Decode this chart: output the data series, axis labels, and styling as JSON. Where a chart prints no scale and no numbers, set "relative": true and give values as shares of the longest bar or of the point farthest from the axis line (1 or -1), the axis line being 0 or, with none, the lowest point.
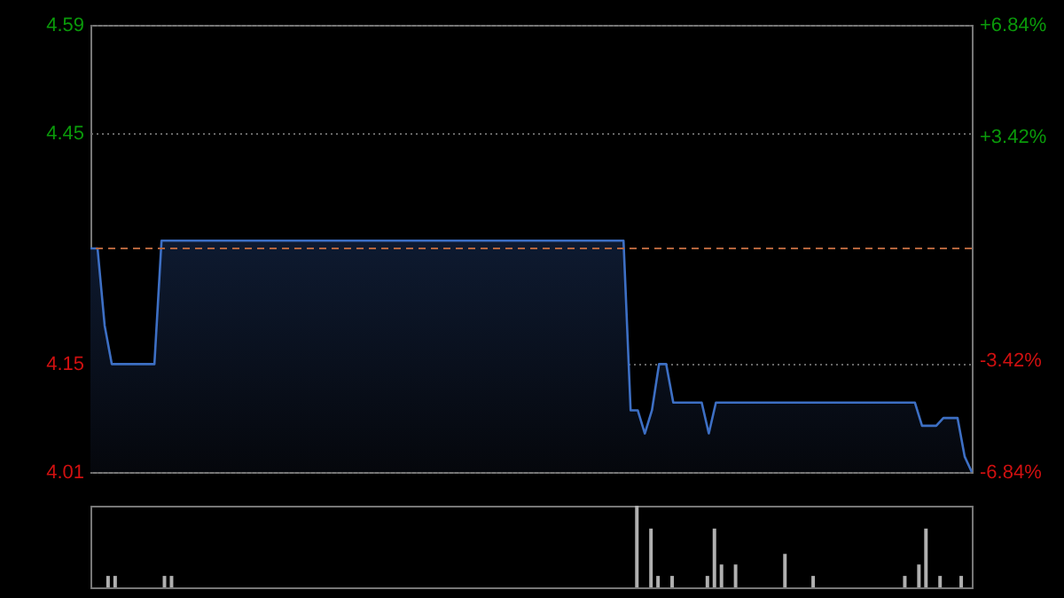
{
  "chart_data": [
    {
      "type": "area",
      "grid": "y",
      "ylim": [
        4.01,
        4.59
      ],
      "yticks": [
        4.01,
        4.15,
        4.45,
        4.59
      ],
      "y2lim": [
        -6.84,
        6.84
      ],
      "y2ticks": [
        {
          "value": 6.84,
          "label": "+6.84%"
        },
        {
          "value": 3.42,
          "label": "+3.42%"
        },
        {
          "value": -3.42,
          "label": "-3.42%"
        },
        {
          "value": -6.84,
          "label": "-6.84%"
        }
      ],
      "ref_lines": [
        {
          "axis": "y",
          "value": 4.3,
          "color": "#b4643c",
          "line_style": "dashed"
        }
      ],
      "categories": [
        null,
        null,
        null,
        null,
        null,
        null,
        null,
        null,
        null,
        null,
        null,
        null,
        null,
        null,
        null,
        null,
        null,
        null,
        null,
        null,
        null,
        null,
        null,
        null,
        null,
        null,
        null,
        null,
        null,
        null,
        null,
        null,
        null,
        null,
        null,
        null,
        null,
        null,
        null,
        null,
        null,
        null,
        null,
        null,
        null,
        null,
        null,
        null,
        null,
        null,
        null,
        null,
        null,
        null,
        null,
        null,
        null,
        null,
        null,
        null,
        null,
        null,
        null,
        null,
        null,
        null,
        null,
        null,
        null,
        null,
        null,
        null,
        null,
        null,
        null,
        null,
        null,
        null,
        null,
        null,
        null,
        null,
        null,
        null,
        null,
        null,
        null,
        null,
        null,
        null,
        null,
        null,
        null,
        null,
        null,
        null,
        null,
        null,
        null,
        null,
        null,
        null,
        null,
        null,
        null,
        null,
        null,
        null,
        null,
        null,
        null,
        null,
        null,
        null,
        null,
        null,
        null,
        null,
        null,
        null,
        null,
        null,
        null,
        null,
        null
      ],
      "series": [
        {
          "color": "#3d6fc4",
          "values": [
            4.3,
            4.3,
            4.2,
            4.15,
            4.15,
            4.15,
            4.15,
            4.15,
            4.15,
            4.15,
            4.31,
            4.31,
            4.31,
            4.31,
            4.31,
            4.31,
            4.31,
            4.31,
            4.31,
            4.31,
            4.31,
            4.31,
            4.31,
            4.31,
            4.31,
            4.31,
            4.31,
            4.31,
            4.31,
            4.31,
            4.31,
            4.31,
            4.31,
            4.31,
            4.31,
            4.31,
            4.31,
            4.31,
            4.31,
            4.31,
            4.31,
            4.31,
            4.31,
            4.31,
            4.31,
            4.31,
            4.31,
            4.31,
            4.31,
            4.31,
            4.31,
            4.31,
            4.31,
            4.31,
            4.31,
            4.31,
            4.31,
            4.31,
            4.31,
            4.31,
            4.31,
            4.31,
            4.31,
            4.31,
            4.31,
            4.31,
            4.31,
            4.31,
            4.31,
            4.31,
            4.31,
            4.31,
            4.31,
            4.31,
            4.31,
            4.31,
            4.09,
            4.09,
            4.06,
            4.09,
            4.15,
            4.15,
            4.1,
            4.1,
            4.1,
            4.1,
            4.1,
            4.06,
            4.1,
            4.1,
            4.1,
            4.1,
            4.1,
            4.1,
            4.1,
            4.1,
            4.1,
            4.1,
            4.1,
            4.1,
            4.1,
            4.1,
            4.1,
            4.1,
            4.1,
            4.1,
            4.1,
            4.1,
            4.1,
            4.1,
            4.1,
            4.1,
            4.1,
            4.1,
            4.1,
            4.1,
            4.1,
            4.07,
            4.07,
            4.07,
            4.08,
            4.08,
            4.08,
            4.03,
            4.01
          ]
        }
      ]
    },
    {
      "type": "bar",
      "relative": true,
      "color": "#b0b0b0",
      "categories": [
        null,
        null,
        null,
        null,
        null,
        null,
        null,
        null,
        null,
        null,
        null,
        null,
        null,
        null,
        null,
        null,
        null,
        null,
        null,
        null,
        null,
        null,
        null,
        null,
        null,
        null,
        null,
        null,
        null,
        null,
        null,
        null,
        null,
        null,
        null,
        null,
        null,
        null,
        null,
        null,
        null,
        null,
        null,
        null,
        null,
        null,
        null,
        null,
        null,
        null,
        null,
        null,
        null,
        null,
        null,
        null,
        null,
        null,
        null,
        null,
        null,
        null,
        null,
        null,
        null,
        null,
        null,
        null,
        null,
        null,
        null,
        null,
        null,
        null,
        null,
        null,
        null,
        null,
        null,
        null,
        null,
        null,
        null,
        null,
        null,
        null,
        null,
        null,
        null,
        null,
        null,
        null,
        null,
        null,
        null,
        null,
        null,
        null,
        null,
        null,
        null,
        null,
        null,
        null,
        null,
        null,
        null,
        null,
        null,
        null,
        null,
        null,
        null,
        null,
        null,
        null,
        null,
        null,
        null,
        null,
        null,
        null,
        null,
        null,
        null
      ],
      "values": [
        0,
        0,
        0.14,
        0.14,
        0,
        0,
        0,
        0,
        0,
        0,
        0.14,
        0.14,
        0,
        0,
        0,
        0,
        0,
        0,
        0,
        0,
        0,
        0,
        0,
        0,
        0,
        0,
        0,
        0,
        0,
        0,
        0,
        0,
        0,
        0,
        0,
        0,
        0,
        0,
        0,
        0,
        0,
        0,
        0,
        0,
        0,
        0,
        0,
        0,
        0,
        0,
        0,
        0,
        0,
        0,
        0,
        0,
        0,
        0,
        0,
        0,
        0,
        0,
        0,
        0,
        0,
        0,
        0,
        0,
        0,
        0,
        0,
        0,
        0,
        0,
        0,
        0,
        0,
        1,
        0,
        0.72,
        0.14,
        0,
        0.14,
        0,
        0,
        0,
        0,
        0.14,
        0.72,
        0.28,
        0,
        0.28,
        0,
        0,
        0,
        0,
        0,
        0,
        0.41,
        0,
        0,
        0,
        0.14,
        0,
        0,
        0,
        0,
        0,
        0,
        0,
        0,
        0,
        0,
        0,
        0,
        0.14,
        0,
        0.28,
        0.72,
        0,
        0.14,
        0,
        0,
        0.14,
        0
      ]
    }
  ]
}
